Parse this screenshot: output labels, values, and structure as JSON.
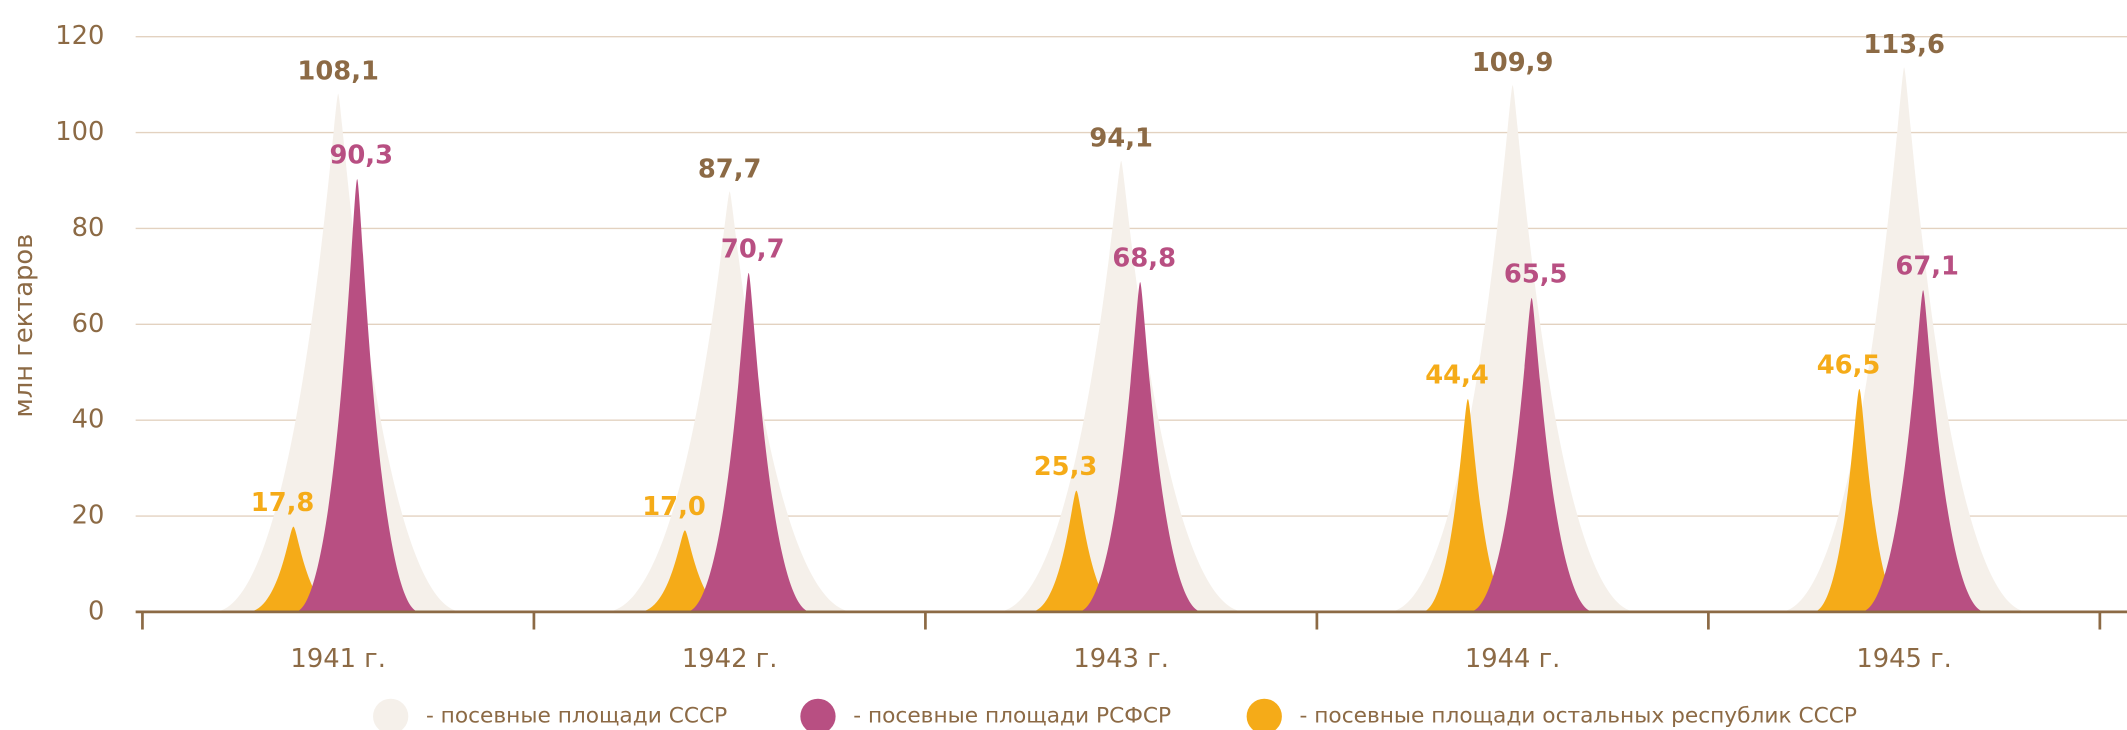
{
  "chart_data": {
    "type": "peak",
    "y_label": "млн гектаров",
    "categories": [
      "1941 г.",
      "1942 г.",
      "1943 г.",
      "1944 г.",
      "1945 г."
    ],
    "series": [
      {
        "name": "- посевные площади СССР",
        "color": "#f5f0ea",
        "label_color": "#8c6a45",
        "values": [
          108.1,
          87.7,
          94.1,
          109.9,
          113.6
        ],
        "value_labels": [
          "108,1",
          "87,7",
          "94,1",
          "109,9",
          "113,6"
        ]
      },
      {
        "name": "- посевные площади РСФСР",
        "color": "#b84f82",
        "label_color": "#b84f82",
        "values": [
          90.3,
          70.7,
          68.8,
          65.5,
          67.1
        ],
        "value_labels": [
          "90,3",
          "70,7",
          "68,8",
          "65,5",
          "67,1"
        ]
      },
      {
        "name": "- посевные площади остальных республик СССР",
        "color": "#f5ab18",
        "label_color": "#f5ab18",
        "values": [
          17.8,
          17.0,
          25.3,
          44.4,
          46.5
        ],
        "value_labels": [
          "17,8",
          "17,0",
          "25,3",
          "44,4",
          "46,5"
        ]
      }
    ],
    "ylim": [
      0,
      120
    ],
    "yticks": [
      0,
      20,
      40,
      60,
      80,
      100,
      120
    ],
    "grid": true
  }
}
